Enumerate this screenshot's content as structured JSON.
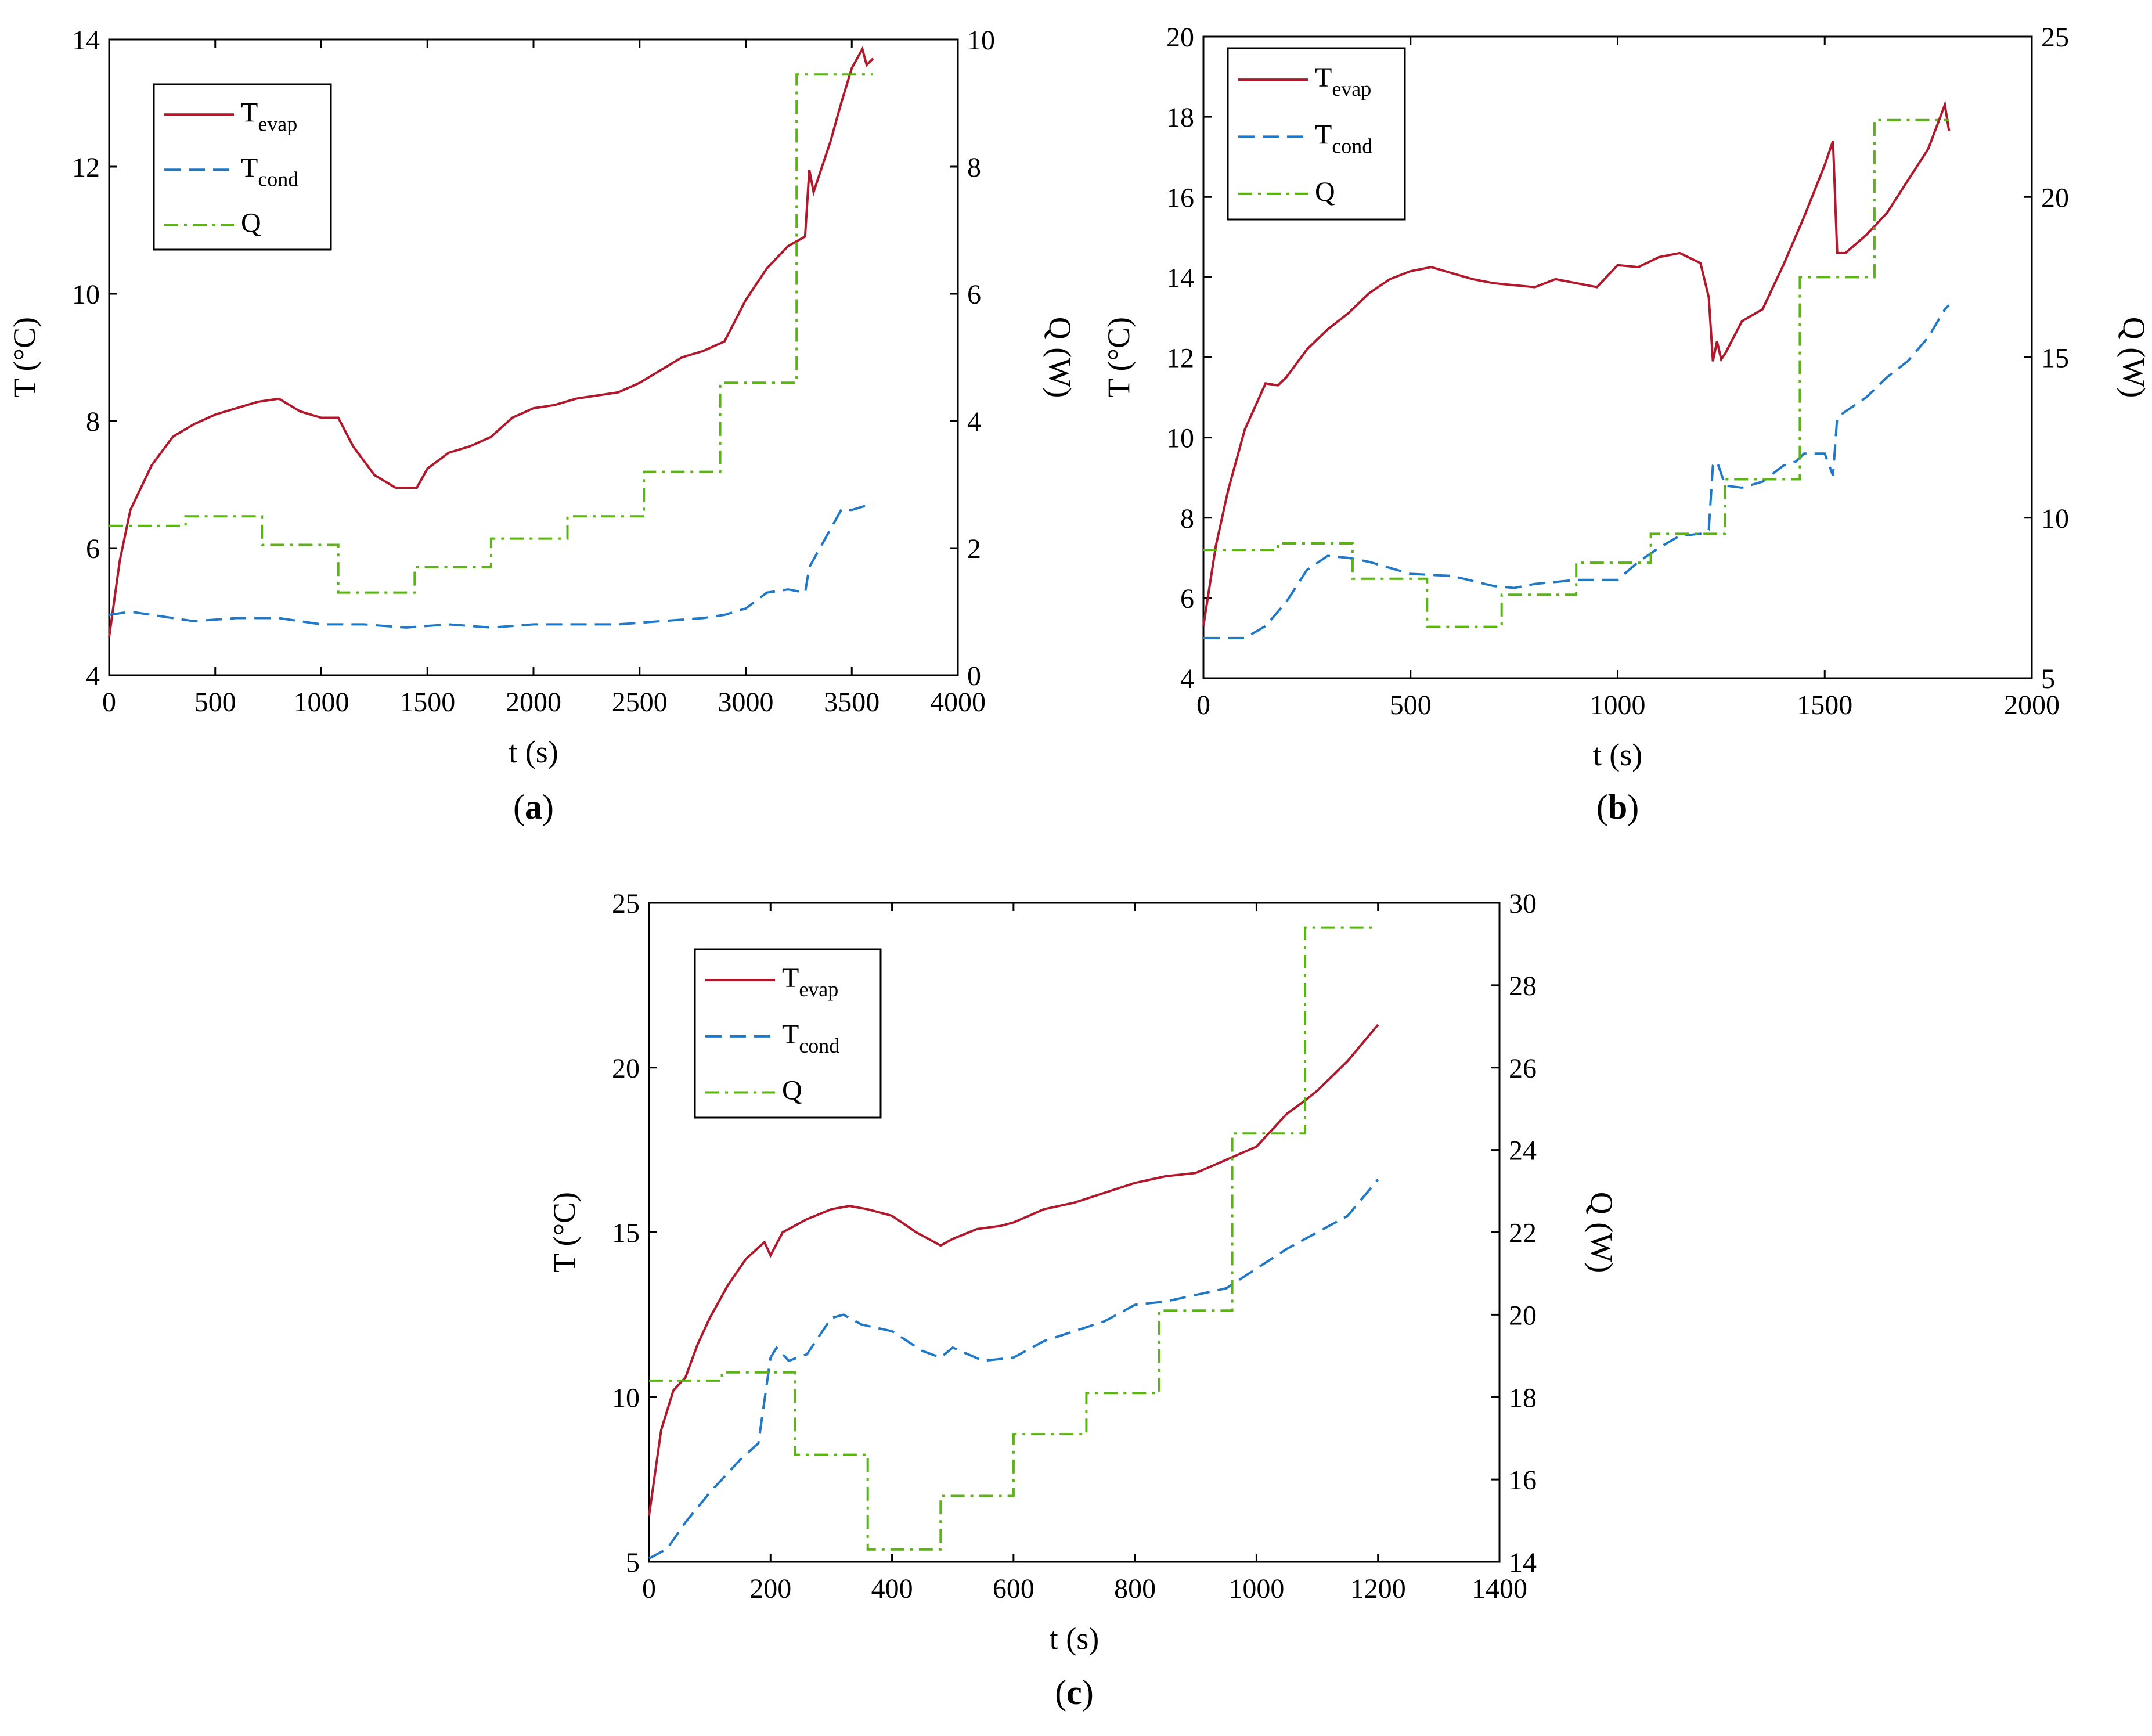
{
  "chart_data": [
    {
      "type": "line",
      "panel_label": "a",
      "xlabel": "t (s)",
      "ylabel": "T (°C)",
      "y2label": "Q (W)",
      "xlim": [
        0,
        4000
      ],
      "ylim": [
        4,
        14
      ],
      "y2lim": [
        0,
        10
      ],
      "xticks": [
        0,
        500,
        1000,
        1500,
        2000,
        2500,
        3000,
        3500,
        4000
      ],
      "yticks": [
        4,
        6,
        8,
        10,
        12,
        14
      ],
      "y2ticks": [
        0,
        2,
        4,
        6,
        8,
        10
      ],
      "legend": [
        {
          "main": "T",
          "sub": "evap",
          "series": "T_evap"
        },
        {
          "main": "T",
          "sub": "cond",
          "series": "T_cond"
        },
        {
          "main": "Q",
          "sub": "",
          "series": "Q"
        }
      ],
      "series": [
        {
          "name": "T_evap",
          "axis": "left",
          "x": [
            0,
            50,
            100,
            200,
            300,
            400,
            500,
            600,
            700,
            800,
            900,
            1000,
            1080,
            1150,
            1250,
            1350,
            1450,
            1500,
            1600,
            1700,
            1800,
            1900,
            2000,
            2100,
            2200,
            2300,
            2400,
            2500,
            2600,
            2700,
            2800,
            2900,
            3000,
            3100,
            3200,
            3280,
            3300,
            3320,
            3350,
            3400,
            3450,
            3500,
            3550,
            3570,
            3600
          ],
          "y": [
            4.6,
            5.8,
            6.6,
            7.3,
            7.75,
            7.95,
            8.1,
            8.2,
            8.3,
            8.35,
            8.15,
            8.05,
            8.05,
            7.6,
            7.15,
            6.95,
            6.95,
            7.25,
            7.5,
            7.6,
            7.75,
            8.05,
            8.2,
            8.25,
            8.35,
            8.4,
            8.45,
            8.6,
            8.8,
            9.0,
            9.1,
            9.25,
            9.9,
            10.4,
            10.75,
            10.9,
            11.95,
            11.6,
            11.9,
            12.4,
            13.0,
            13.55,
            13.85,
            13.6,
            13.7
          ]
        },
        {
          "name": "T_cond",
          "axis": "left",
          "x": [
            0,
            100,
            200,
            400,
            600,
            800,
            1000,
            1200,
            1400,
            1600,
            1800,
            2000,
            2200,
            2400,
            2600,
            2800,
            2900,
            3000,
            3100,
            3200,
            3280,
            3300,
            3350,
            3400,
            3450,
            3500,
            3600
          ],
          "y": [
            4.95,
            5.0,
            4.95,
            4.85,
            4.9,
            4.9,
            4.8,
            4.8,
            4.75,
            4.8,
            4.75,
            4.8,
            4.8,
            4.8,
            4.85,
            4.9,
            4.95,
            5.05,
            5.3,
            5.35,
            5.3,
            5.7,
            6.0,
            6.3,
            6.6,
            6.6,
            6.7
          ]
        },
        {
          "name": "Q",
          "axis": "right",
          "step": true,
          "x": [
            0,
            360,
            720,
            1080,
            1440,
            1800,
            2160,
            2520,
            2880,
            3240,
            3600
          ],
          "y": [
            2.35,
            2.5,
            2.05,
            1.3,
            1.7,
            2.15,
            2.5,
            3.2,
            4.6,
            9.45,
            9.45
          ]
        }
      ]
    },
    {
      "type": "line",
      "panel_label": "b",
      "xlabel": "t (s)",
      "ylabel": "T (°C)",
      "y2label": "Q (W)",
      "xlim": [
        0,
        2000
      ],
      "ylim": [
        4,
        20
      ],
      "y2lim": [
        5,
        25
      ],
      "xticks": [
        0,
        500,
        1000,
        1500,
        2000
      ],
      "yticks": [
        4,
        6,
        8,
        10,
        12,
        14,
        16,
        18,
        20
      ],
      "y2ticks": [
        5,
        10,
        15,
        20,
        25
      ],
      "legend": [
        {
          "main": "T",
          "sub": "evap",
          "series": "T_evap"
        },
        {
          "main": "T",
          "sub": "cond",
          "series": "T_cond"
        },
        {
          "main": "Q",
          "sub": "",
          "series": "Q"
        }
      ],
      "series": [
        {
          "name": "T_evap",
          "axis": "left",
          "x": [
            0,
            30,
            60,
            100,
            150,
            180,
            200,
            250,
            300,
            350,
            400,
            450,
            500,
            550,
            600,
            650,
            700,
            750,
            800,
            850,
            900,
            950,
            1000,
            1050,
            1100,
            1150,
            1200,
            1220,
            1230,
            1240,
            1250,
            1260,
            1300,
            1350,
            1400,
            1450,
            1500,
            1520,
            1530,
            1550,
            1600,
            1650,
            1700,
            1750,
            1790,
            1800
          ],
          "y": [
            5.3,
            7.3,
            8.7,
            10.2,
            11.35,
            11.3,
            11.5,
            12.2,
            12.7,
            13.1,
            13.6,
            13.95,
            14.15,
            14.25,
            14.1,
            13.95,
            13.85,
            13.8,
            13.75,
            13.95,
            13.85,
            13.75,
            14.3,
            14.25,
            14.5,
            14.6,
            14.35,
            13.5,
            11.9,
            12.4,
            11.95,
            12.1,
            12.9,
            13.2,
            14.3,
            15.5,
            16.8,
            17.4,
            14.6,
            14.6,
            15.05,
            15.6,
            16.4,
            17.2,
            18.3,
            17.65
          ]
        },
        {
          "name": "T_cond",
          "axis": "left",
          "x": [
            0,
            100,
            150,
            200,
            250,
            300,
            350,
            400,
            500,
            600,
            700,
            750,
            800,
            900,
            1000,
            1050,
            1100,
            1150,
            1200,
            1220,
            1230,
            1240,
            1260,
            1300,
            1350,
            1400,
            1430,
            1450,
            1500,
            1520,
            1530,
            1550,
            1600,
            1650,
            1700,
            1750,
            1790,
            1800
          ],
          "y": [
            5.0,
            5.0,
            5.3,
            5.9,
            6.7,
            7.05,
            7.0,
            6.9,
            6.6,
            6.55,
            6.3,
            6.25,
            6.35,
            6.45,
            6.45,
            6.9,
            7.25,
            7.55,
            7.6,
            7.7,
            9.3,
            9.4,
            8.8,
            8.75,
            8.9,
            9.3,
            9.4,
            9.6,
            9.6,
            9.05,
            10.5,
            10.65,
            11.0,
            11.5,
            11.9,
            12.5,
            13.2,
            13.3
          ]
        },
        {
          "name": "Q",
          "axis": "right",
          "step": true,
          "x": [
            0,
            180,
            360,
            540,
            720,
            900,
            1080,
            1260,
            1440,
            1620,
            1800
          ],
          "y": [
            9.0,
            9.2,
            8.1,
            6.6,
            7.6,
            8.6,
            9.5,
            11.2,
            17.5,
            22.4,
            22.4
          ]
        }
      ]
    },
    {
      "type": "line",
      "panel_label": "c",
      "xlabel": "t (s)",
      "ylabel": "T (°C)",
      "y2label": "Q (W)",
      "xlim": [
        0,
        1400
      ],
      "ylim": [
        5,
        25
      ],
      "y2lim": [
        14,
        30
      ],
      "xticks": [
        0,
        200,
        400,
        600,
        800,
        1000,
        1200,
        1400
      ],
      "yticks": [
        5,
        10,
        15,
        20,
        25
      ],
      "y2ticks": [
        14,
        16,
        18,
        20,
        22,
        24,
        26,
        28,
        30
      ],
      "legend": [
        {
          "main": "T",
          "sub": "evap",
          "series": "T_evap"
        },
        {
          "main": "T",
          "sub": "cond",
          "series": "T_cond"
        },
        {
          "main": "Q",
          "sub": "",
          "series": "Q"
        }
      ],
      "series": [
        {
          "name": "T_evap",
          "axis": "left",
          "x": [
            0,
            20,
            40,
            60,
            80,
            100,
            130,
            160,
            190,
            200,
            220,
            260,
            300,
            330,
            360,
            400,
            440,
            480,
            500,
            540,
            580,
            600,
            650,
            700,
            750,
            800,
            850,
            900,
            950,
            1000,
            1050,
            1080,
            1100,
            1150,
            1200
          ],
          "y": [
            6.4,
            9.0,
            10.2,
            10.6,
            11.6,
            12.4,
            13.4,
            14.2,
            14.7,
            14.3,
            15.0,
            15.4,
            15.7,
            15.8,
            15.7,
            15.5,
            15.0,
            14.6,
            14.8,
            15.1,
            15.2,
            15.3,
            15.7,
            15.9,
            16.2,
            16.5,
            16.7,
            16.8,
            17.2,
            17.6,
            18.6,
            19.0,
            19.3,
            20.2,
            21.3
          ]
        },
        {
          "name": "T_cond",
          "axis": "left",
          "x": [
            0,
            30,
            60,
            100,
            150,
            180,
            200,
            210,
            230,
            260,
            300,
            320,
            350,
            400,
            450,
            480,
            500,
            550,
            600,
            650,
            700,
            750,
            800,
            850,
            900,
            950,
            1000,
            1050,
            1100,
            1150,
            1200
          ],
          "y": [
            5.1,
            5.4,
            6.2,
            7.1,
            8.1,
            8.6,
            11.2,
            11.5,
            11.1,
            11.3,
            12.4,
            12.5,
            12.2,
            12.0,
            11.4,
            11.2,
            11.5,
            11.1,
            11.2,
            11.7,
            12.0,
            12.3,
            12.8,
            12.9,
            13.1,
            13.3,
            13.9,
            14.5,
            15.0,
            15.5,
            16.6
          ]
        },
        {
          "name": "Q",
          "axis": "right",
          "step": true,
          "x": [
            0,
            120,
            240,
            360,
            480,
            600,
            720,
            840,
            960,
            1080,
            1200
          ],
          "y": [
            18.4,
            18.6,
            16.6,
            14.3,
            15.6,
            17.1,
            18.1,
            20.1,
            24.4,
            29.4,
            29.4
          ]
        }
      ]
    }
  ]
}
